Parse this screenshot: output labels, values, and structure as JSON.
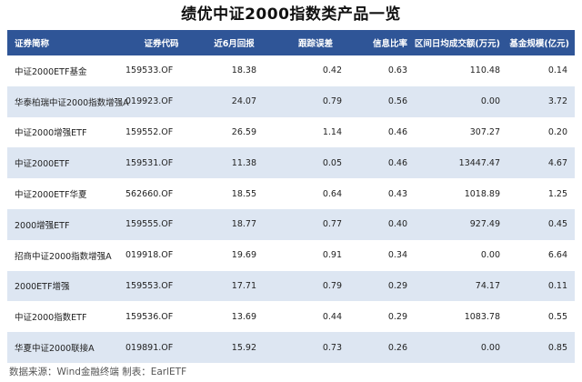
{
  "title": "绩优中证2000指数类产品一览",
  "columns": [
    "证券简称",
    "证券代码",
    "近6月回报",
    "跟踪误差",
    "信息比率",
    "区间日均成交额(万元)",
    "基金规模(亿元)"
  ],
  "rows": [
    [
      "中证2000ETF基金",
      "159533.OF",
      "18.38",
      "0.42",
      "0.63",
      "110.48",
      "0.14"
    ],
    [
      "华泰柏瑞中证2000指数增强A",
      "019923.OF",
      "24.07",
      "0.79",
      "0.56",
      "0.00",
      "3.72"
    ],
    [
      "中证2000增强ETF",
      "159552.OF",
      "26.59",
      "1.14",
      "0.46",
      "307.27",
      "0.20"
    ],
    [
      "中证2000ETF",
      "159531.OF",
      "11.38",
      "0.05",
      "0.46",
      "13447.47",
      "4.67"
    ],
    [
      "中证2000ETF华夏",
      "562660.OF",
      "18.55",
      "0.64",
      "0.43",
      "1018.89",
      "1.25"
    ],
    [
      "2000增强ETF",
      "159555.OF",
      "18.77",
      "0.77",
      "0.40",
      "927.49",
      "0.45"
    ],
    [
      "招商中证2000指数增强A",
      "019918.OF",
      "19.69",
      "0.91",
      "0.34",
      "0.00",
      "6.64"
    ],
    [
      "2000ETF增强",
      "159553.OF",
      "17.71",
      "0.79",
      "0.29",
      "74.17",
      "0.11"
    ],
    [
      "中证2000指数ETF",
      "159536.OF",
      "13.69",
      "0.44",
      "0.29",
      "1083.78",
      "0.55"
    ],
    [
      "华夏中证2000联接A",
      "019891.OF",
      "15.92",
      "0.73",
      "0.26",
      "0.00",
      "0.85"
    ]
  ],
  "footer": "数据来源：Wind金融终端  制表：EarlETF",
  "colors": {
    "header_bg": "#2f5597",
    "alt_row_bg": "#dde6f2"
  }
}
